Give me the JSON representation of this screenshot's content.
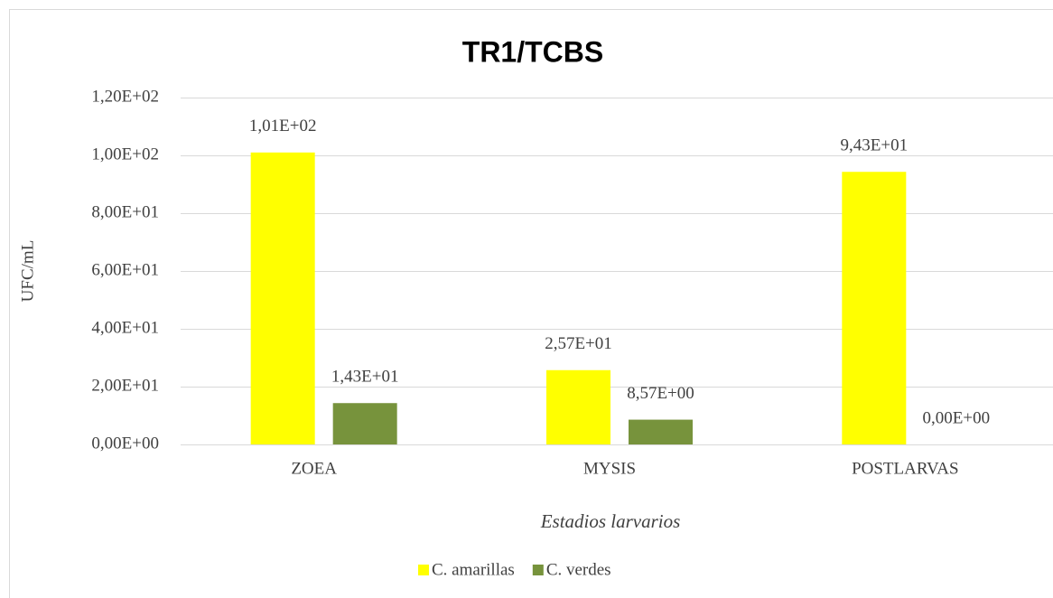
{
  "chart_data": {
    "type": "bar",
    "title": "TR1/TCBS",
    "y_label": "UFC/mL",
    "x_label": "Estadios larvarios",
    "categories": [
      "ZOEA",
      "MYSIS",
      "POSTLARVAS"
    ],
    "series": [
      {
        "name": "C. amarillas",
        "color": "#ffff00",
        "values": [
          101,
          25.7,
          94.3
        ],
        "value_labels": [
          "1,01E+02",
          "2,57E+01",
          "9,43E+01"
        ]
      },
      {
        "name": "C. verdes",
        "color": "#77933c",
        "values": [
          14.3,
          8.57,
          0
        ],
        "value_labels": [
          "1,43E+01",
          "8,57E+00",
          "0,00E+00"
        ]
      }
    ],
    "ylim": [
      0,
      120
    ],
    "yticks": [
      {
        "value": 0,
        "label": "0,00E+00"
      },
      {
        "value": 20,
        "label": "2,00E+01"
      },
      {
        "value": 40,
        "label": "4,00E+01"
      },
      {
        "value": 60,
        "label": "6,00E+01"
      },
      {
        "value": 80,
        "label": "8,00E+01"
      },
      {
        "value": 100,
        "label": "1,00E+02"
      },
      {
        "value": 120,
        "label": "1,20E+02"
      }
    ],
    "grid": true,
    "legend": "bottom"
  }
}
